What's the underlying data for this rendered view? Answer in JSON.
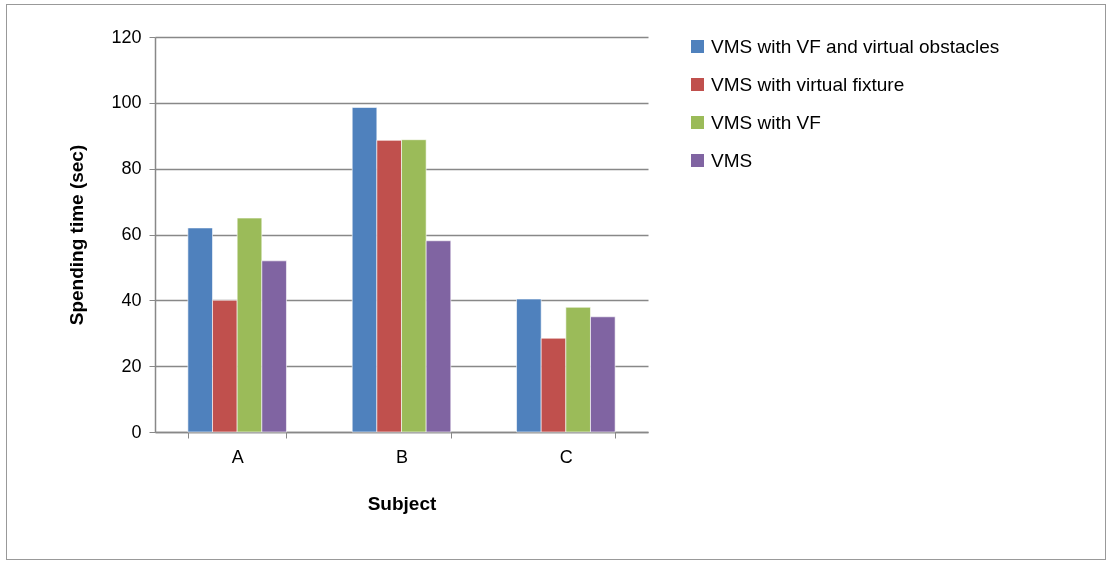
{
  "chart_data": {
    "type": "bar",
    "xlabel": "Subject",
    "ylabel": "Spending time (sec)",
    "categories": [
      "A",
      "B",
      "C"
    ],
    "series": [
      {
        "name": "VMS with VF and virtual obstacles",
        "color": "#4f81bd",
        "values": [
          62,
          98.6,
          40.4
        ]
      },
      {
        "name": "VMS with virtual fixture",
        "color": "#c0504d",
        "values": [
          40,
          88.6,
          28.5
        ]
      },
      {
        "name": "VMS with VF",
        "color": "#9bbb59",
        "values": [
          65,
          88.8,
          37.9
        ]
      },
      {
        "name": "VMS",
        "color": "#8064a2",
        "values": [
          52,
          58.1,
          35
        ]
      }
    ],
    "ylim": [
      0,
      120
    ],
    "yticks": [
      0,
      20,
      40,
      60,
      80,
      100,
      120
    ],
    "grid": "y",
    "legend": "right"
  }
}
